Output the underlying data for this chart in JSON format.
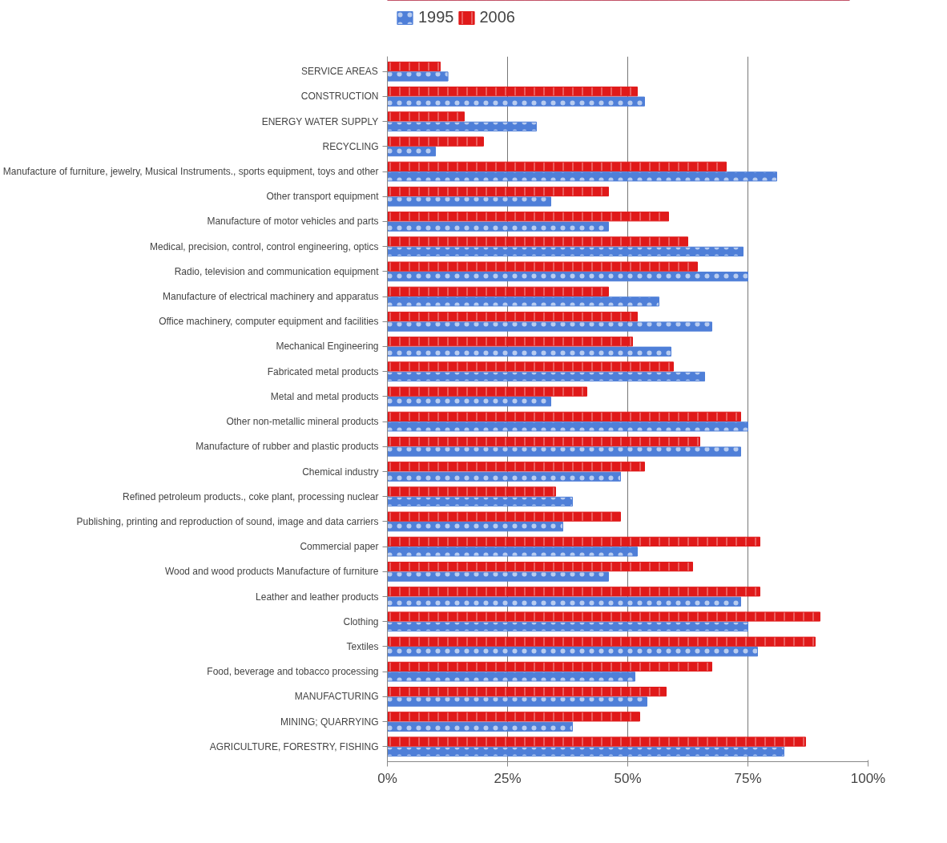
{
  "chart_data": {
    "type": "bar",
    "orientation": "horizontal",
    "categories": [
      "SERVICE AREAS",
      "CONSTRUCTION",
      "ENERGY WATER SUPPLY",
      "RECYCLING",
      "Manufacture of furniture, jewelry, Musical Instruments., sports equipment, toys and other",
      "Other transport equipment",
      "Manufacture of motor vehicles and parts",
      "Medical, precision, control, control engineering, optics",
      "Radio, television and communication equipment",
      "Manufacture of electrical machinery and apparatus",
      "Office machinery, computer equipment and facilities",
      "Mechanical Engineering",
      "Fabricated metal products",
      "Metal and metal products",
      "Other non-metallic mineral products",
      "Manufacture of rubber and plastic products",
      "Chemical industry",
      "Refined petroleum products., coke plant, processing nuclear",
      "Publishing, printing and reproduction of sound, image and data carriers",
      "Commercial paper",
      "Wood and wood products Manufacture of furniture",
      "Leather and leather products",
      "Clothing",
      "Textiles",
      "Food, beverage and tobacco processing",
      "MANUFACTURING",
      "MINING; QUARRYING",
      "AGRICULTURE, FORESTRY, FISHING"
    ],
    "series": [
      {
        "name": "1995",
        "color": "#4f7fd8",
        "values": [
          12.6,
          53.5,
          31,
          10,
          81,
          34,
          46,
          74,
          75,
          56.5,
          67.5,
          59,
          66,
          34,
          75,
          73.5,
          48.5,
          38.5,
          36.5,
          52,
          46,
          73.5,
          75,
          77,
          51.5,
          54,
          38.5,
          82.5
        ]
      },
      {
        "name": "2006",
        "color": "#e01a1a",
        "values": [
          11,
          52,
          16,
          20,
          70.5,
          46,
          58.5,
          62.5,
          64.5,
          46,
          52,
          51,
          59.5,
          41.5,
          73.5,
          65,
          53.5,
          35,
          48.5,
          77.5,
          63.5,
          77.5,
          90,
          89,
          67.5,
          58,
          52.5,
          87
        ]
      }
    ],
    "xlim": [
      0,
      100
    ],
    "xticks": [
      {
        "value": 0,
        "label": "0%"
      },
      {
        "value": 25,
        "label": "25%"
      },
      {
        "value": 50,
        "label": "50%"
      },
      {
        "value": 75,
        "label": "75%"
      },
      {
        "value": 100,
        "label": "100%"
      }
    ],
    "grid": "x",
    "legend": "top left"
  }
}
